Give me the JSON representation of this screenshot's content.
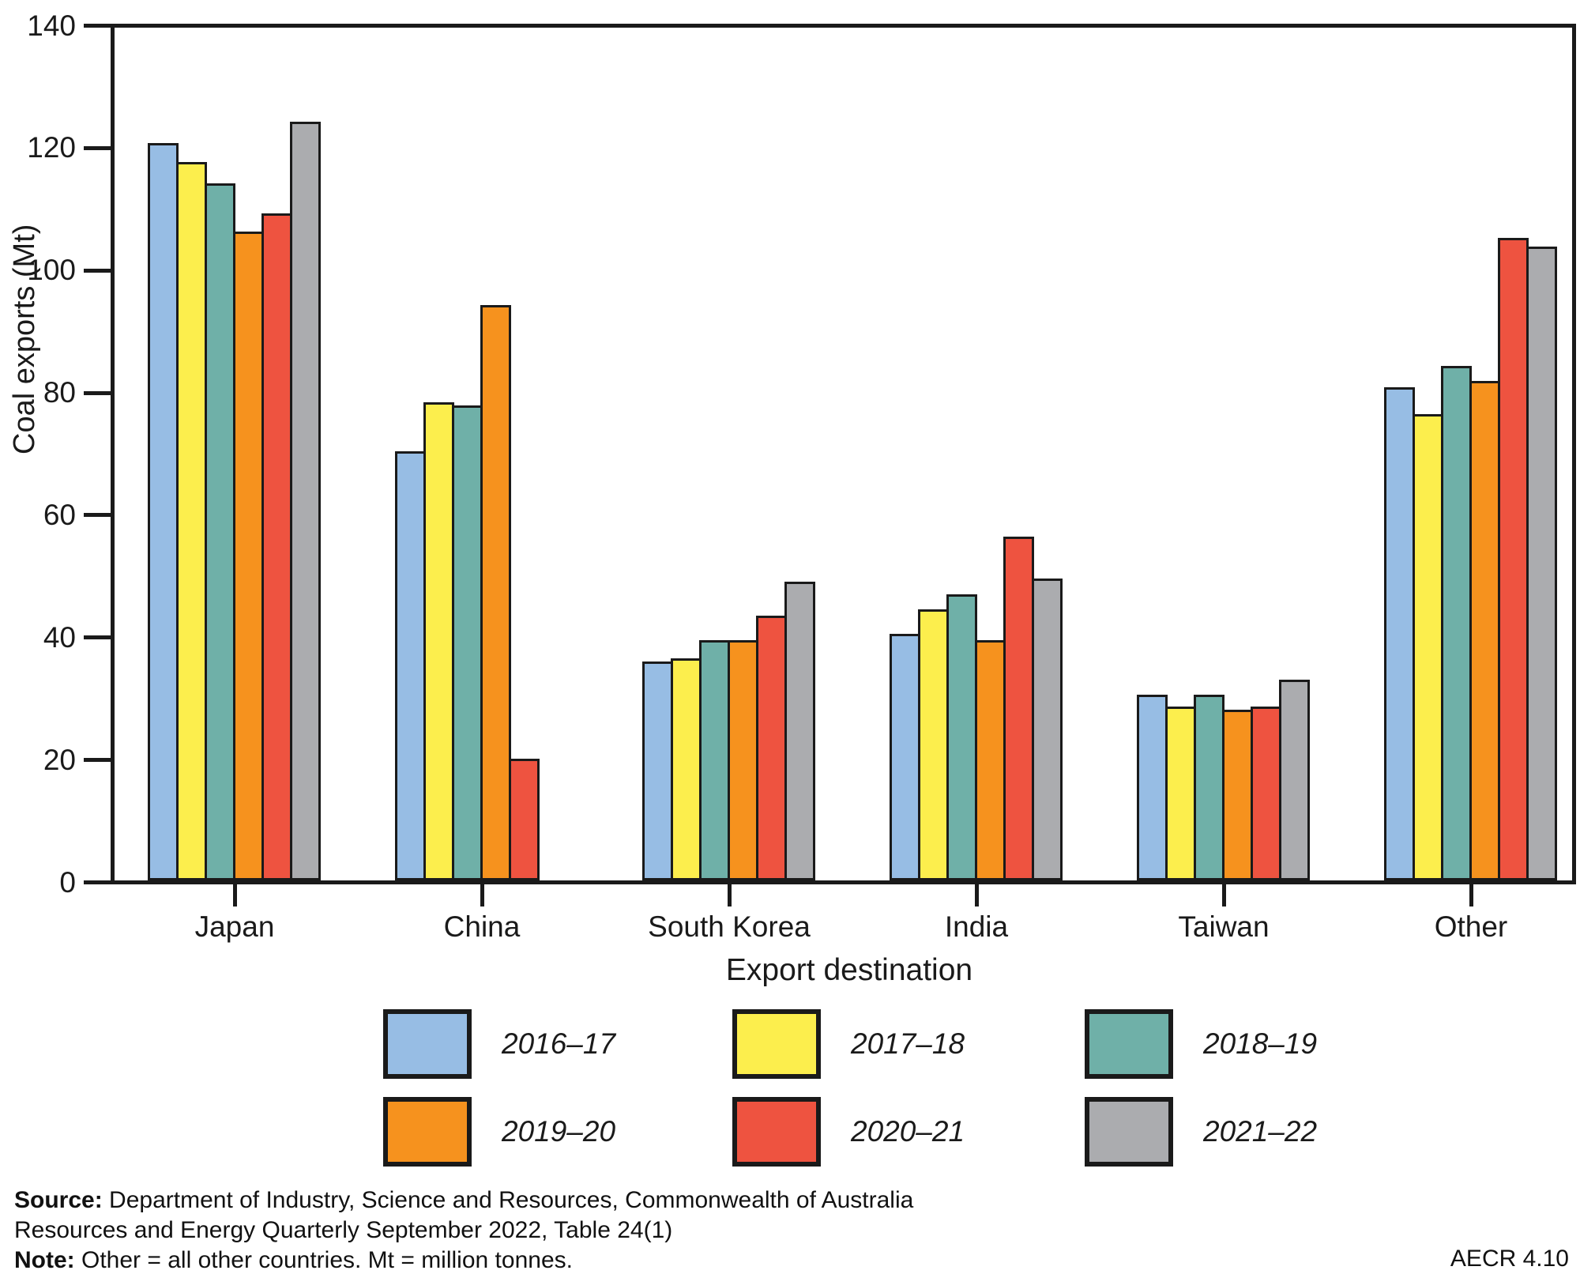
{
  "figure": {
    "background": "#ffffff",
    "ref": "AECR 4.10"
  },
  "chart_data": {
    "type": "bar",
    "title": "",
    "xlabel": "Export destination",
    "ylabel": "Coal exports (Mt)",
    "ylim": [
      0,
      140
    ],
    "yticks": [
      0,
      20,
      40,
      60,
      80,
      100,
      120,
      140
    ],
    "grid": false,
    "legend_position": "bottom",
    "bar_outline": "#1a1a1a",
    "categories": [
      "Japan",
      "China",
      "South Korea",
      "India",
      "Taiwan",
      "Other"
    ],
    "series": [
      {
        "name": "2016–17",
        "color": "#97bde4",
        "values": [
          121,
          70.5,
          36,
          40.5,
          30.5,
          81
        ]
      },
      {
        "name": "2017–18",
        "color": "#fcee4d",
        "values": [
          118,
          78.5,
          36.5,
          44.5,
          28.5,
          76.5
        ]
      },
      {
        "name": "2018–19",
        "color": "#6fb0a8",
        "values": [
          114.5,
          78,
          39.5,
          47,
          30.5,
          84.5
        ]
      },
      {
        "name": "2019–20",
        "color": "#f6921e",
        "values": [
          106.5,
          94.5,
          39.5,
          39.5,
          28,
          82
        ]
      },
      {
        "name": "2020–21",
        "color": "#ee5340",
        "values": [
          109.5,
          20,
          43.5,
          56.5,
          28.5,
          105.5
        ]
      },
      {
        "name": "2021–22",
        "color": "#abacaf",
        "values": [
          124.5,
          0,
          49,
          49.5,
          33,
          104
        ]
      }
    ]
  },
  "notes": {
    "source_label": "Source:",
    "source_line1": "Department of Industry, Science and Resources, Commonwealth of Australia",
    "source_line2": "Resources and Energy Quarterly September 2022, Table 24(1)",
    "note_label": "Note:",
    "note_text": "Other = all other countries. Mt = million tonnes."
  }
}
